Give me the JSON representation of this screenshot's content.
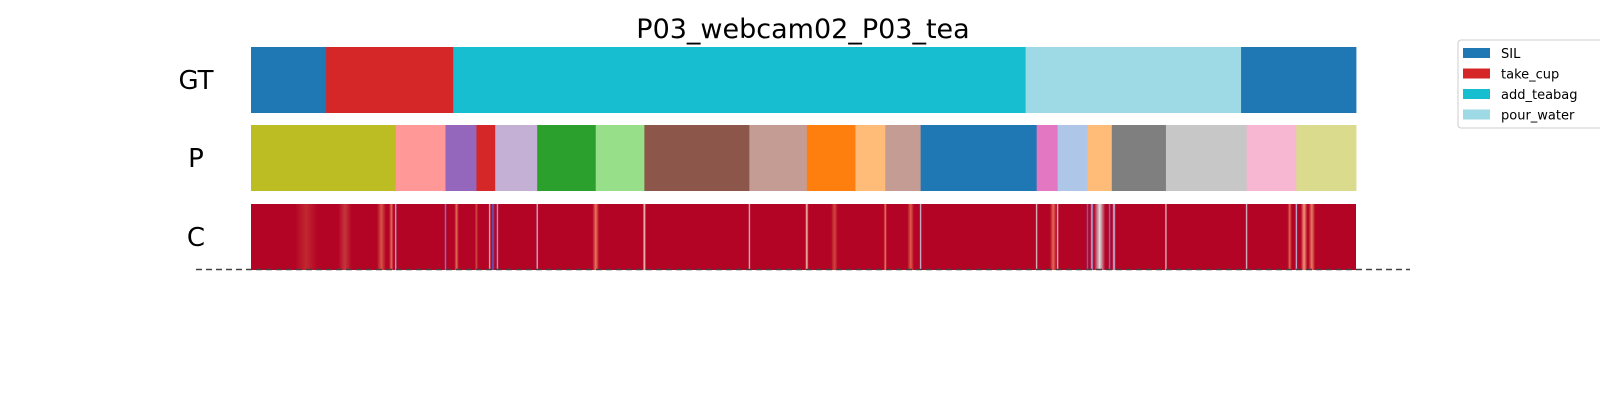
{
  "chart_data": {
    "type": "segmentation-timeline",
    "title": "P03_webcam02_P03_tea",
    "x_range": [
      0,
      1
    ],
    "rows": [
      {
        "label": "GT",
        "segments": [
          {
            "start": 0.0,
            "end": 0.068,
            "class": "SIL"
          },
          {
            "start": 0.068,
            "end": 0.183,
            "class": "take_cup"
          },
          {
            "start": 0.183,
            "end": 0.701,
            "class": "add_teabag"
          },
          {
            "start": 0.701,
            "end": 0.896,
            "class": "pour_water"
          },
          {
            "start": 0.896,
            "end": 1.0,
            "class": "SIL"
          }
        ]
      },
      {
        "label": "P",
        "segments": [
          {
            "start": 0.0,
            "end": 0.131,
            "color": "#bcbd22"
          },
          {
            "start": 0.131,
            "end": 0.176,
            "color": "#ff9896"
          },
          {
            "start": 0.176,
            "end": 0.204,
            "color": "#9467bd"
          },
          {
            "start": 0.204,
            "end": 0.221,
            "color": "#d62728"
          },
          {
            "start": 0.221,
            "end": 0.259,
            "color": "#c5b0d5"
          },
          {
            "start": 0.259,
            "end": 0.312,
            "color": "#2ca02c"
          },
          {
            "start": 0.312,
            "end": 0.356,
            "color": "#98df8a"
          },
          {
            "start": 0.356,
            "end": 0.451,
            "color": "#8c564b"
          },
          {
            "start": 0.451,
            "end": 0.503,
            "color": "#c49c94"
          },
          {
            "start": 0.503,
            "end": 0.547,
            "color": "#ff7f0e"
          },
          {
            "start": 0.547,
            "end": 0.574,
            "color": "#ffbb78"
          },
          {
            "start": 0.574,
            "end": 0.606,
            "color": "#c49c94"
          },
          {
            "start": 0.606,
            "end": 0.711,
            "color": "#1f77b4"
          },
          {
            "start": 0.711,
            "end": 0.73,
            "color": "#e377c2"
          },
          {
            "start": 0.73,
            "end": 0.757,
            "color": "#aec7e8"
          },
          {
            "start": 0.757,
            "end": 0.779,
            "color": "#ffbb78"
          },
          {
            "start": 0.779,
            "end": 0.828,
            "color": "#7f7f7f"
          },
          {
            "start": 0.828,
            "end": 0.901,
            "color": "#c7c7c7"
          },
          {
            "start": 0.901,
            "end": 0.946,
            "color": "#f7b6d2"
          },
          {
            "start": 0.946,
            "end": 1.0,
            "color": "#dbdb8d"
          }
        ]
      },
      {
        "label": "C",
        "base_color": "#b40426",
        "confidence_dips": [
          {
            "pos": 0.05,
            "width": 0.02,
            "color": "#c0282f"
          },
          {
            "pos": 0.085,
            "width": 0.012,
            "color": "#c4363a"
          },
          {
            "pos": 0.118,
            "width": 0.008,
            "color": "#d75445"
          },
          {
            "pos": 0.127,
            "width": 0.004,
            "color": "#e46e56"
          },
          {
            "pos": 0.131,
            "width": 0.002,
            "color": "#aec9fc"
          },
          {
            "pos": 0.176,
            "width": 0.002,
            "color": "#6f92f3"
          },
          {
            "pos": 0.186,
            "width": 0.004,
            "color": "#e36b54"
          },
          {
            "pos": 0.204,
            "width": 0.003,
            "color": "#d24b40"
          },
          {
            "pos": 0.216,
            "width": 0.002,
            "color": "#e8d6cc"
          },
          {
            "pos": 0.219,
            "width": 0.003,
            "color": "#4b64d5"
          },
          {
            "pos": 0.223,
            "width": 0.002,
            "color": "#9ebeff"
          },
          {
            "pos": 0.259,
            "width": 0.002,
            "color": "#c3d5f4"
          },
          {
            "pos": 0.312,
            "width": 0.006,
            "color": "#e7745b"
          },
          {
            "pos": 0.356,
            "width": 0.003,
            "color": "#f2cbb7"
          },
          {
            "pos": 0.451,
            "width": 0.002,
            "color": "#e2dad5"
          },
          {
            "pos": 0.503,
            "width": 0.003,
            "color": "#f4c5ad"
          },
          {
            "pos": 0.528,
            "width": 0.006,
            "color": "#d0473d"
          },
          {
            "pos": 0.574,
            "width": 0.003,
            "color": "#e8765c"
          },
          {
            "pos": 0.597,
            "width": 0.006,
            "color": "#dc5d4a"
          },
          {
            "pos": 0.606,
            "width": 0.002,
            "color": "#cad8ef"
          },
          {
            "pos": 0.711,
            "width": 0.002,
            "color": "#dddcdc"
          },
          {
            "pos": 0.726,
            "width": 0.006,
            "color": "#e36b54"
          },
          {
            "pos": 0.73,
            "width": 0.002,
            "color": "#e0dbd8"
          },
          {
            "pos": 0.757,
            "width": 0.002,
            "color": "#5b7ae5"
          },
          {
            "pos": 0.761,
            "width": 0.003,
            "color": "#9ebeff"
          },
          {
            "pos": 0.768,
            "width": 0.01,
            "color": "#dcdddd"
          },
          {
            "pos": 0.777,
            "width": 0.002,
            "color": "#6687ed"
          },
          {
            "pos": 0.781,
            "width": 0.003,
            "color": "#bfd3f6"
          },
          {
            "pos": 0.828,
            "width": 0.002,
            "color": "#e7d7ce"
          },
          {
            "pos": 0.901,
            "width": 0.002,
            "color": "#d5dbe5"
          },
          {
            "pos": 0.94,
            "width": 0.004,
            "color": "#e0654f"
          },
          {
            "pos": 0.946,
            "width": 0.002,
            "color": "#bcd2f7"
          },
          {
            "pos": 0.953,
            "width": 0.006,
            "color": "#f39475"
          },
          {
            "pos": 0.96,
            "width": 0.006,
            "color": "#e97a5f"
          }
        ]
      }
    ],
    "legend": {
      "placement": "top-right",
      "entries": [
        {
          "label": "SIL",
          "color": "#1f77b4"
        },
        {
          "label": "take_cup",
          "color": "#d62728"
        },
        {
          "label": "add_teabag",
          "color": "#17becf"
        },
        {
          "label": "pour_water",
          "color": "#9edae5"
        }
      ]
    },
    "grid": false,
    "baseline": "dashed"
  }
}
